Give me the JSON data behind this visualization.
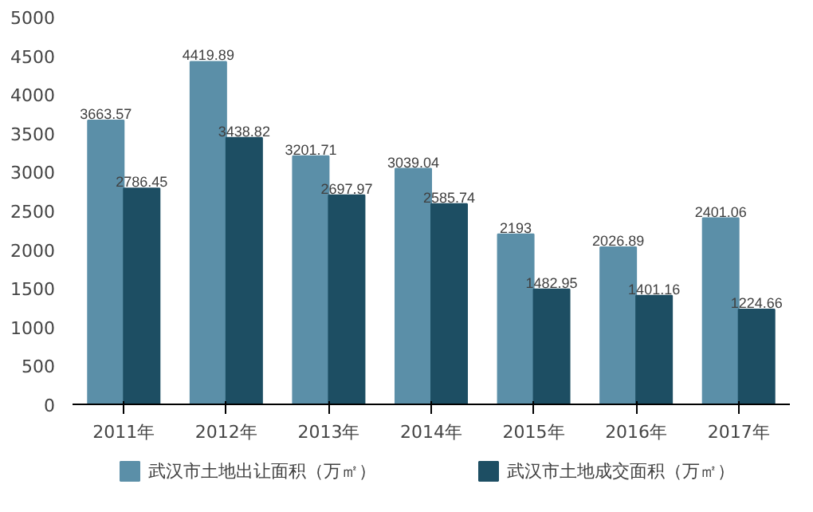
{
  "chart_data": {
    "type": "bar",
    "categories": [
      "2011年",
      "2012年",
      "2013年",
      "2014年",
      "2015年",
      "2016年",
      "2017年"
    ],
    "series": [
      {
        "name": "武汉市土地出让面积（万㎡）",
        "color": "#5b8fa8",
        "values": [
          3663.57,
          4419.89,
          3201.71,
          3039.04,
          2193,
          2026.89,
          2401.06
        ]
      },
      {
        "name": "武汉市土地成交面积（万㎡）",
        "color": "#1d4e63",
        "values": [
          2786.45,
          3438.82,
          2697.97,
          2585.74,
          1482.95,
          1401.16,
          1224.66
        ]
      }
    ],
    "ylim": [
      0,
      5000
    ],
    "yticks": [
      0,
      500,
      1000,
      1500,
      2000,
      2500,
      3000,
      3500,
      4000,
      4500,
      5000
    ],
    "grid": false,
    "legend": "bottom",
    "data_labels": true
  }
}
